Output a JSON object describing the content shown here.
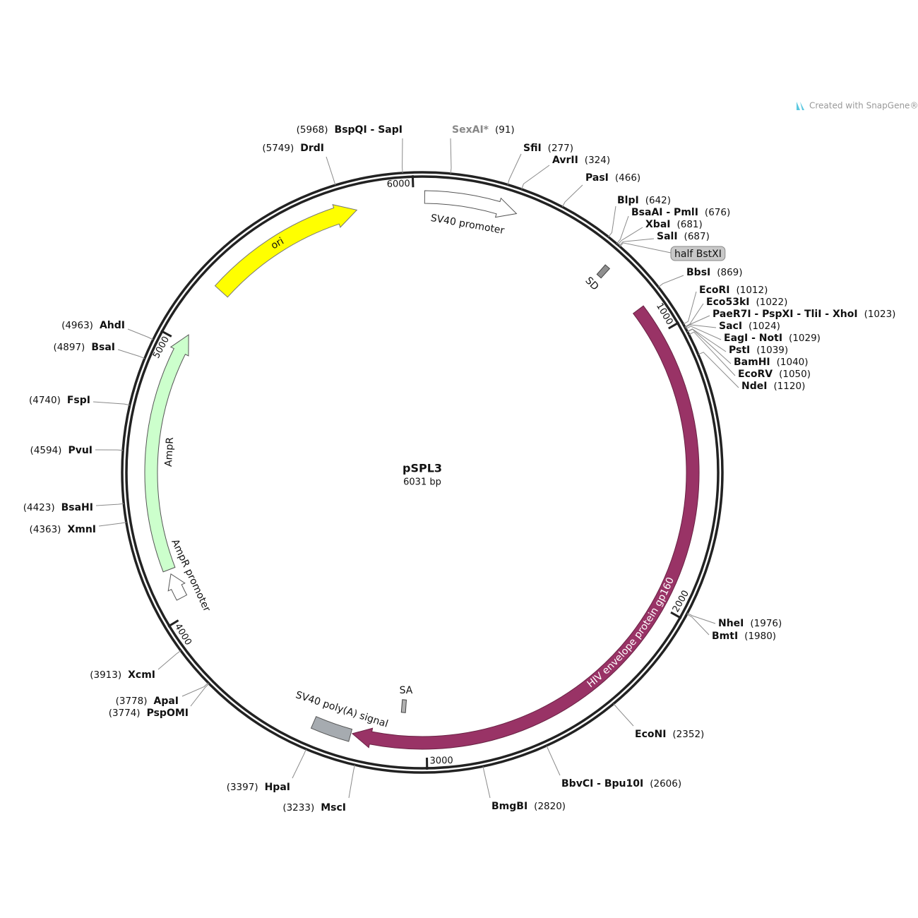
{
  "watermark": "Created with SnapGene®",
  "plasmid": {
    "name": "pSPL3",
    "length": {
      "value": 6031,
      "label": "6031 bp"
    }
  },
  "ticks": [
    1000,
    2000,
    3000,
    4000,
    5000,
    6000
  ],
  "features": [
    {
      "label": "SV40 promoter",
      "color": "#ffffff"
    },
    {
      "label": "ori",
      "color": "#ffff00"
    },
    {
      "label": "AmpR",
      "color": "#ccffcc"
    },
    {
      "label": "AmpR promoter",
      "color": "#ffffff"
    },
    {
      "label": "HIV envelope protein gp160",
      "color": "#993366"
    },
    {
      "label": "SV40 poly(A) signal",
      "color": "#a6abb0"
    },
    {
      "label": "SD",
      "color": "#8f8f8f"
    },
    {
      "label": "SA",
      "color": "#b0b0b0"
    },
    {
      "label": "half BstXI",
      "color": "#c8c8c8"
    }
  ],
  "sites": [
    {
      "name": "SexAI*",
      "position": {
        "value": 91,
        "label": "(91)"
      },
      "color": "#888888"
    },
    {
      "name": "SfiI",
      "position": {
        "value": 277,
        "label": "(277)"
      }
    },
    {
      "name": "AvrII",
      "position": {
        "value": 324,
        "label": "(324)"
      }
    },
    {
      "name": "PasI",
      "position": {
        "value": 466,
        "label": "(466)"
      }
    },
    {
      "name": "BlpI",
      "position": {
        "value": 642,
        "label": "(642)"
      }
    },
    {
      "name": "BsaAI - PmlI",
      "position": {
        "value": 676,
        "label": "(676)"
      }
    },
    {
      "name": "XbaI",
      "position": {
        "value": 681,
        "label": "(681)"
      }
    },
    {
      "name": "SalI",
      "position": {
        "value": 687,
        "label": "(687)"
      }
    },
    {
      "name": "BbsI",
      "position": {
        "value": 869,
        "label": "(869)"
      }
    },
    {
      "name": "EcoRI",
      "position": {
        "value": 1012,
        "label": "(1012)"
      }
    },
    {
      "name": "Eco53kI",
      "position": {
        "value": 1022,
        "label": "(1022)"
      }
    },
    {
      "name": "PaeR7I - PspXI - TliI - XhoI",
      "position": {
        "value": 1023,
        "label": "(1023)"
      }
    },
    {
      "name": "SacI",
      "position": {
        "value": 1024,
        "label": "(1024)"
      }
    },
    {
      "name": "EagI - NotI",
      "position": {
        "value": 1029,
        "label": "(1029)"
      }
    },
    {
      "name": "PstI",
      "position": {
        "value": 1039,
        "label": "(1039)"
      }
    },
    {
      "name": "BamHI",
      "position": {
        "value": 1040,
        "label": "(1040)"
      }
    },
    {
      "name": "EcoRV",
      "position": {
        "value": 1050,
        "label": "(1050)"
      }
    },
    {
      "name": "NdeI",
      "position": {
        "value": 1120,
        "label": "(1120)"
      }
    },
    {
      "name": "NheI",
      "position": {
        "value": 1976,
        "label": "(1976)"
      }
    },
    {
      "name": "BmtI",
      "position": {
        "value": 1980,
        "label": "(1980)"
      }
    },
    {
      "name": "EcoNI",
      "position": {
        "value": 2352,
        "label": "(2352)"
      }
    },
    {
      "name": "BbvCI - Bpu10I",
      "position": {
        "value": 2606,
        "label": "(2606)"
      }
    },
    {
      "name": "BmgBI",
      "position": {
        "value": 2820,
        "label": "(2820)"
      }
    },
    {
      "name": "MscI",
      "position": {
        "value": 3233,
        "label": "(3233)"
      }
    },
    {
      "name": "HpaI",
      "position": {
        "value": 3397,
        "label": "(3397)"
      }
    },
    {
      "name": "PspOMI",
      "position": {
        "value": 3774,
        "label": "(3774)"
      }
    },
    {
      "name": "ApaI",
      "position": {
        "value": 3778,
        "label": "(3778)"
      }
    },
    {
      "name": "XcmI",
      "position": {
        "value": 3913,
        "label": "(3913)"
      }
    },
    {
      "name": "XmnI",
      "position": {
        "value": 4363,
        "label": "(4363)"
      }
    },
    {
      "name": "BsaHI",
      "position": {
        "value": 4423,
        "label": "(4423)"
      }
    },
    {
      "name": "PvuI",
      "position": {
        "value": 4594,
        "label": "(4594)"
      }
    },
    {
      "name": "FspI",
      "position": {
        "value": 4740,
        "label": "(4740)"
      }
    },
    {
      "name": "BsaI",
      "position": {
        "value": 4897,
        "label": "(4897)"
      }
    },
    {
      "name": "AhdI",
      "position": {
        "value": 4963,
        "label": "(4963)"
      }
    },
    {
      "name": "DrdI",
      "position": {
        "value": 5749,
        "label": "(5749)"
      }
    },
    {
      "name": "BspQI - SapI",
      "position": {
        "value": 5968,
        "label": "(5968)"
      }
    }
  ]
}
